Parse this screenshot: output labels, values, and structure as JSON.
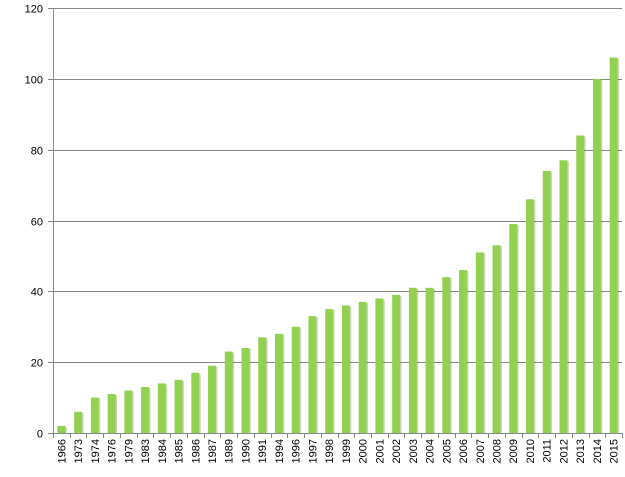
{
  "chart_data": {
    "type": "bar",
    "title": "",
    "xlabel": "",
    "ylabel": "",
    "ylim": [
      0,
      120
    ],
    "yticks": [
      0,
      20,
      40,
      60,
      80,
      100,
      120
    ],
    "grid": true,
    "legend": "none",
    "categories": [
      "1966",
      "1973",
      "1974",
      "1976",
      "1979",
      "1983",
      "1984",
      "1985",
      "1986",
      "1987",
      "1989",
      "1990",
      "1991",
      "1994",
      "1996",
      "1997",
      "1998",
      "1999",
      "2000",
      "2001",
      "2002",
      "2003",
      "2004",
      "2005",
      "2006",
      "2007",
      "2008",
      "2009",
      "2010",
      "2011",
      "2012",
      "2013",
      "2014",
      "2015"
    ],
    "series": [
      {
        "values": [
          2,
          6,
          10,
          11,
          12,
          13,
          14,
          15,
          17,
          19,
          23,
          24,
          27,
          28,
          30,
          33,
          35,
          36,
          37,
          38,
          39,
          41,
          41,
          44,
          46,
          51,
          53,
          59,
          66,
          74,
          77,
          84,
          100,
          106
        ]
      }
    ],
    "colors": {
      "bar": "#92d050",
      "bar_shadow": "#5e8c2e",
      "grid": "#868686",
      "axis": "#868686"
    }
  }
}
